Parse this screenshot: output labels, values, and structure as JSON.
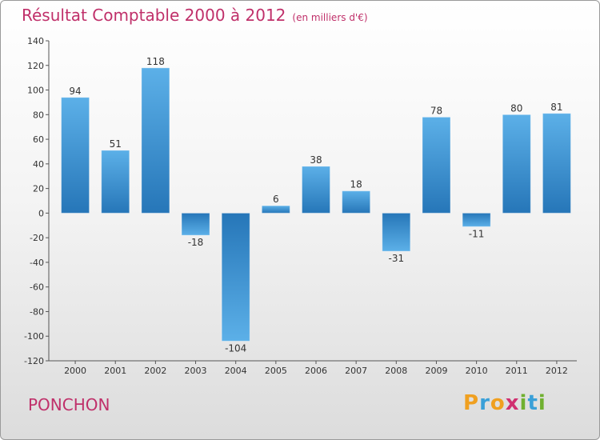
{
  "header": {
    "title": "Résultat Comptable 2000 à 2012",
    "subtitle": "(en milliers d'€)"
  },
  "footer": {
    "commune": "PONCHON",
    "logo_letters": [
      "P",
      "r",
      "o",
      "x",
      "i",
      "t",
      "i"
    ],
    "logo_colors": [
      "#f0a020",
      "#3aa0d8",
      "#f0a020",
      "#d03070",
      "#70b030",
      "#3aa0d8",
      "#70b030"
    ]
  },
  "chart_data": {
    "type": "bar",
    "categories": [
      "2000",
      "2001",
      "2002",
      "2003",
      "2004",
      "2005",
      "2006",
      "2007",
      "2008",
      "2009",
      "2010",
      "2011",
      "2012"
    ],
    "values": [
      94,
      51,
      118,
      -18,
      -104,
      6,
      38,
      18,
      -31,
      78,
      -11,
      80,
      81
    ],
    "data_labels": [
      "94",
      "51",
      "118",
      "-18",
      "-104",
      "6",
      "38",
      "18",
      "-31",
      "78",
      "-11",
      "80",
      "81"
    ],
    "y_ticks": [
      "140",
      "120",
      "100",
      "80",
      "60",
      "40",
      "20",
      "0",
      "-20",
      "-40",
      "-60",
      "-80",
      "-100",
      "-120"
    ],
    "ylim": [
      -120,
      140
    ],
    "bar_color_light": "#5aaee6",
    "bar_color_dark": "#2b7cc0",
    "grid": false
  }
}
